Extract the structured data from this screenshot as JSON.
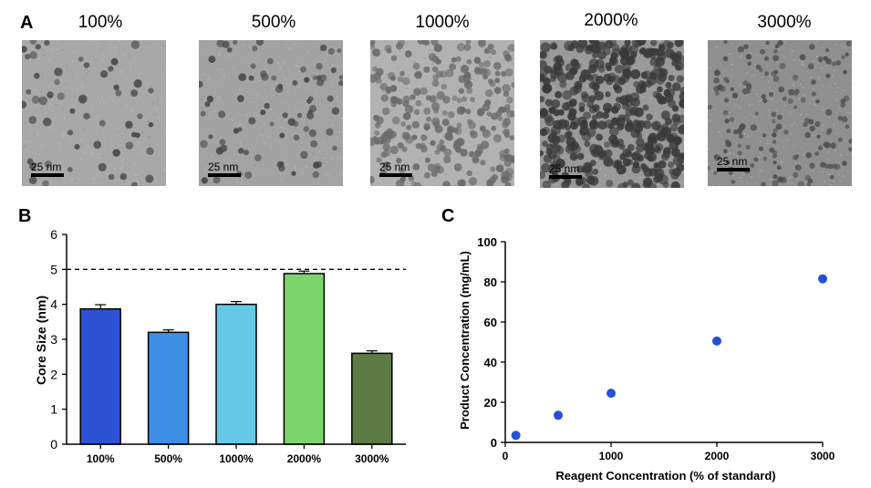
{
  "panels": {
    "a": "A",
    "b": "B",
    "c": "C"
  },
  "tem_images": [
    {
      "label": "100%",
      "scale": "25 nm",
      "bg": "#a8a8a8",
      "dot": "#4a4a4a",
      "density": 55,
      "size": 4
    },
    {
      "label": "500%",
      "scale": "25 nm",
      "bg": "#a3a3a3",
      "dot": "#484848",
      "density": 80,
      "size": 3.6
    },
    {
      "label": "1000%",
      "scale": "25 nm",
      "bg": "#b2b2b2",
      "dot": "#6a6a6a",
      "density": 260,
      "size": 4
    },
    {
      "label": "2000%",
      "scale": "25 nm",
      "bg": "#9a9a9a",
      "dot": "#3a3a3a",
      "density": 420,
      "size": 4.6
    },
    {
      "label": "3000%",
      "scale": "25 nm",
      "bg": "#8f8f8f",
      "dot": "#4e4e4e",
      "density": 160,
      "size": 3
    }
  ],
  "chart_data": [
    {
      "type": "bar",
      "panel": "B",
      "ylabel": "Core Size (nm)",
      "xlabel": "",
      "categories": [
        "100%",
        "500%",
        "1000%",
        "2000%",
        "3000%"
      ],
      "values": [
        3.87,
        3.2,
        4.0,
        4.88,
        2.6
      ],
      "errors": [
        0.12,
        0.07,
        0.08,
        0.07,
        0.07
      ],
      "colors": [
        "#2d52d6",
        "#3f8ee6",
        "#64c8e6",
        "#7cd46c",
        "#5d7b45"
      ],
      "ylim": [
        0,
        6
      ],
      "yticks": [
        0,
        1,
        2,
        3,
        4,
        5,
        6
      ],
      "reference_line": 5
    },
    {
      "type": "scatter",
      "panel": "C",
      "xlabel": "Reagent Concentration (% of standard)",
      "ylabel": "Product Concentration (mg/mL)",
      "x": [
        100,
        500,
        1000,
        2000,
        3000
      ],
      "y": [
        3.5,
        13.5,
        24.5,
        50.5,
        81.5
      ],
      "xlim": [
        0,
        3000
      ],
      "ylim": [
        0,
        100
      ],
      "xticks": [
        0,
        1000,
        2000,
        3000
      ],
      "yticks": [
        0,
        20,
        40,
        60,
        80,
        100
      ],
      "color": "#2451d6"
    }
  ]
}
